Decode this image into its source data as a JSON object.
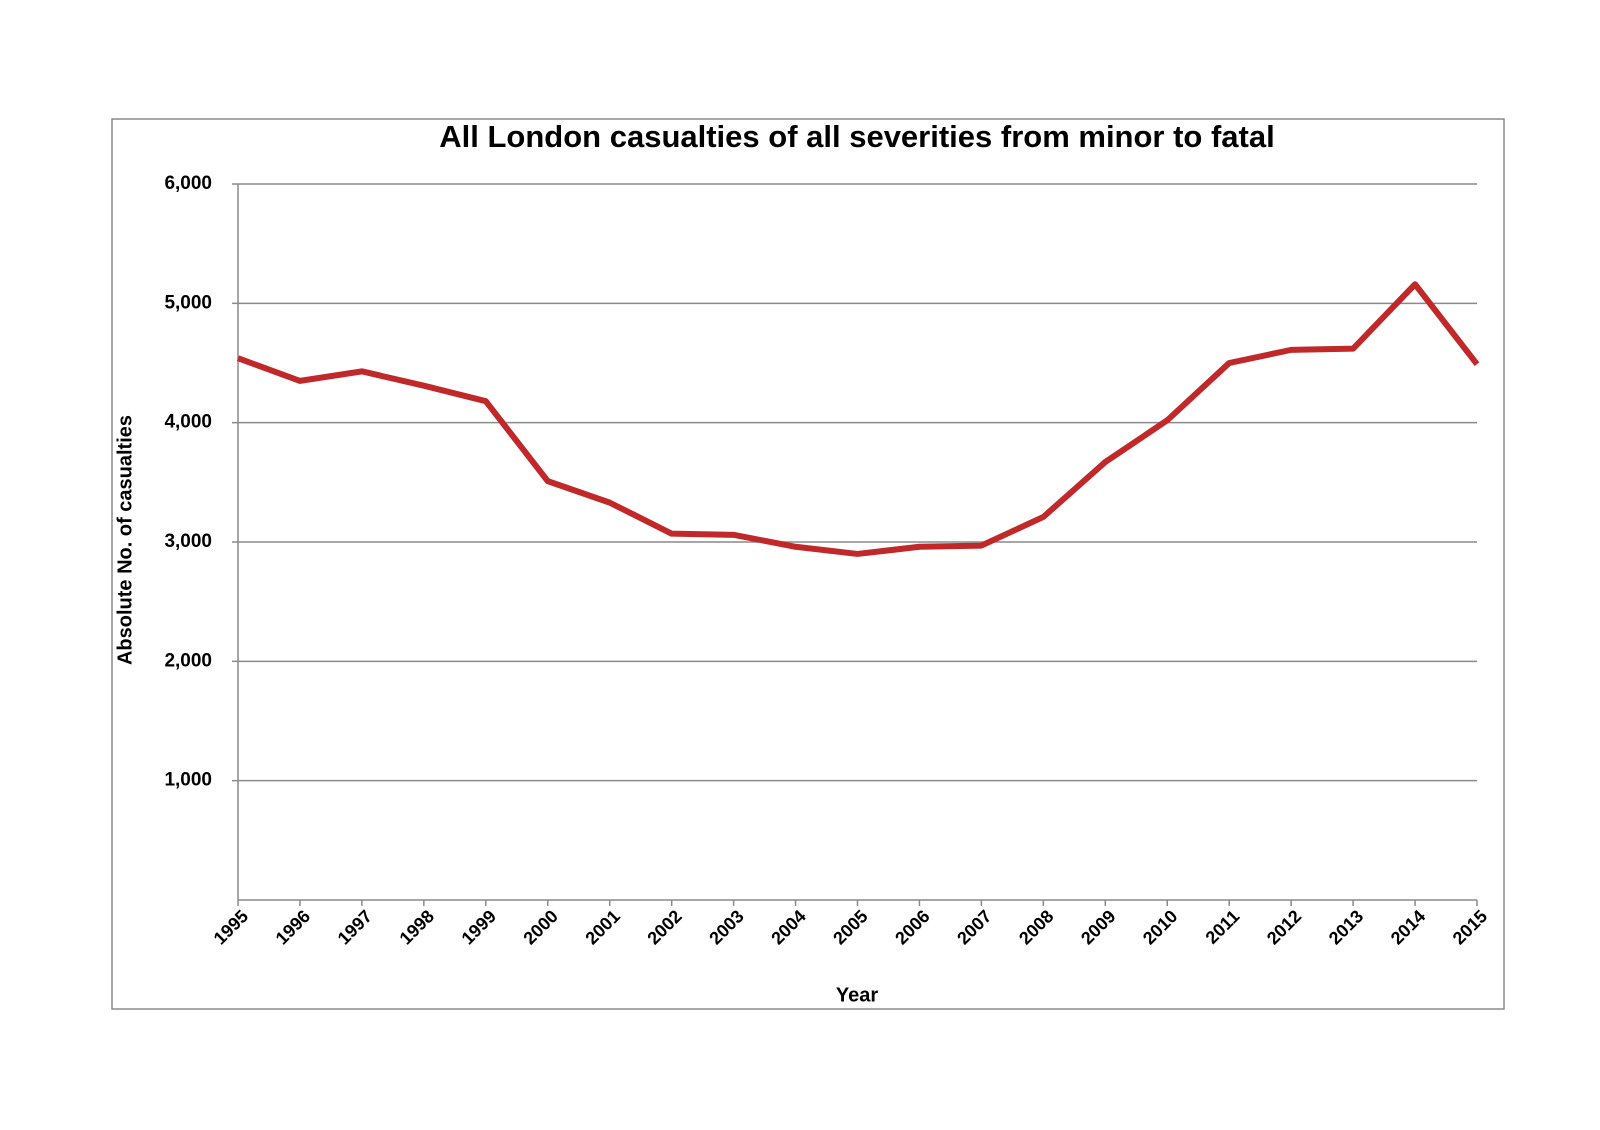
{
  "chart_data": {
    "type": "line",
    "title": "All London casualties of all severities from minor to fatal",
    "x_label": "Year",
    "y_label": "Absolute No. of casualties",
    "categories": [
      "1995",
      "1996",
      "1997",
      "1998",
      "1999",
      "2000",
      "2001",
      "2002",
      "2003",
      "2004",
      "2005",
      "2006",
      "2007",
      "2008",
      "2009",
      "2010",
      "2011",
      "2012",
      "2013",
      "2014",
      "2015"
    ],
    "series": [
      {
        "name": "All London casualties",
        "color": "#c0282a",
        "values": [
          4540,
          4350,
          4430,
          4310,
          4180,
          3510,
          3330,
          3070,
          3060,
          2960,
          2900,
          2960,
          2970,
          3210,
          3670,
          4020,
          4500,
          4610,
          4620,
          5160,
          4490
        ]
      }
    ],
    "ylim": [
      0,
      6000
    ],
    "yticks": [
      {
        "value": 1000,
        "label": "1,000"
      },
      {
        "value": 2000,
        "label": "2,000"
      },
      {
        "value": 3000,
        "label": "3,000"
      },
      {
        "value": 4000,
        "label": "4,000"
      },
      {
        "value": 5000,
        "label": "5,000"
      },
      {
        "value": 6000,
        "label": "6,000"
      }
    ],
    "grid": true
  }
}
